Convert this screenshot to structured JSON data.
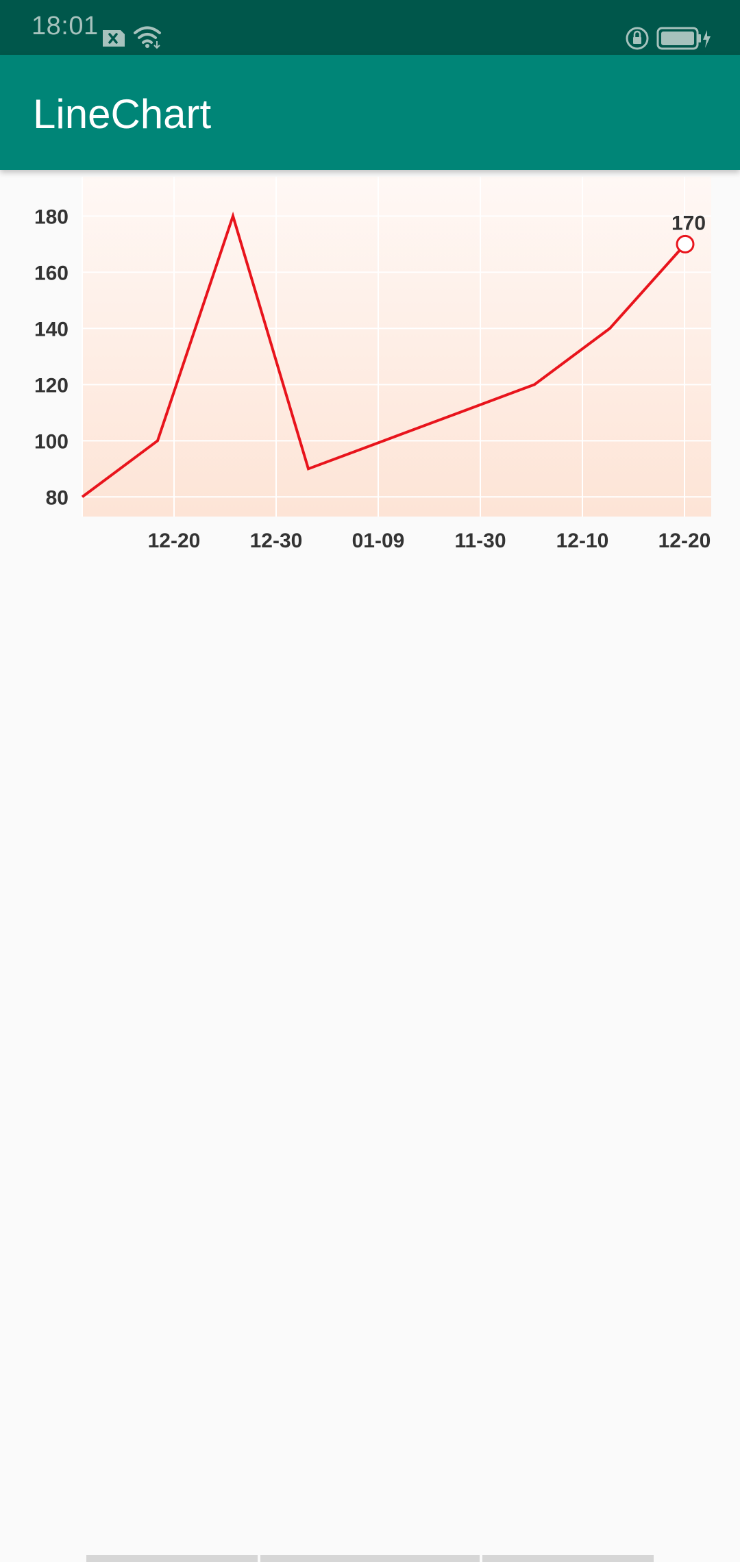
{
  "status_bar": {
    "time": "18:01",
    "icons": [
      "sim-card-x-icon",
      "wifi-icon",
      "screen-rotation-lock-icon",
      "battery-charging-icon"
    ]
  },
  "app_bar": {
    "title": "LineChart"
  },
  "colors": {
    "status_bar": "#00574b",
    "app_bar": "#008577",
    "line": "#e8141c",
    "fill_top": "#fff8f5",
    "fill_bottom": "#fde4d6",
    "grid": "#ffffff",
    "axis_text": "#333333"
  },
  "chart_data": {
    "type": "line",
    "title": "",
    "xlabel": "",
    "ylabel": "",
    "y_ticks": [
      "80",
      "100",
      "120",
      "140",
      "160",
      "180"
    ],
    "x_ticks": [
      "12-20",
      "12-30",
      "01-09",
      "11-30",
      "12-10",
      "12-20"
    ],
    "ylim": [
      73,
      194
    ],
    "grid": true,
    "series": [
      {
        "values": [
          80,
          100,
          180,
          90,
          100,
          110,
          120,
          140,
          170
        ]
      }
    ],
    "highlight": {
      "value": 170,
      "label": "170"
    }
  }
}
